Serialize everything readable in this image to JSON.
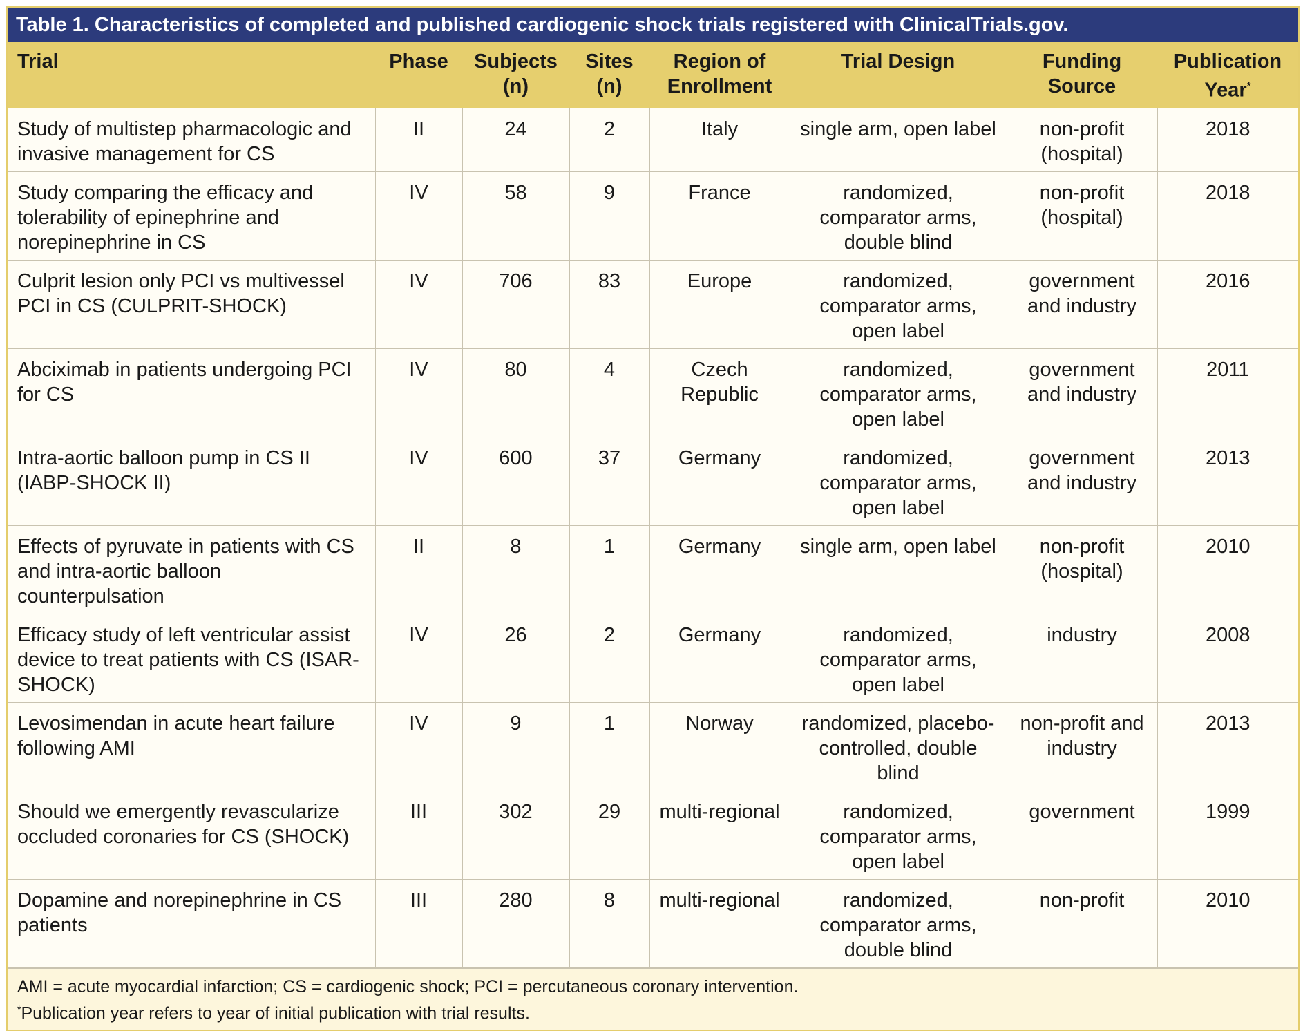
{
  "title": "Table 1. Characteristics of completed and published cardiogenic shock trials registered with ClinicalTrials.gov.",
  "table": {
    "header": [
      "Trial",
      "Phase",
      "Subjects (n)",
      "Sites (n)",
      "Region of Enrollment",
      "Trial Design",
      "Funding Source",
      "Publication Year"
    ],
    "header_note": "*",
    "rows": [
      [
        "Study of multistep pharmacologic and invasive management for CS",
        "II",
        "24",
        "2",
        "Italy",
        "single arm, open label",
        "non-profit (hospital)",
        "2018"
      ],
      [
        "Study comparing the efficacy and tolerability of epinephrine and norepinephrine in CS",
        "IV",
        "58",
        "9",
        "France",
        "randomized, comparator arms, double blind",
        "non-profit (hospital)",
        "2018"
      ],
      [
        "Culprit lesion only PCI vs multivessel PCI in CS (CULPRIT-SHOCK)",
        "IV",
        "706",
        "83",
        "Europe",
        "randomized, comparator arms, open label",
        "government and industry",
        "2016"
      ],
      [
        "Abciximab in patients undergoing PCI for CS",
        "IV",
        "80",
        "4",
        "Czech Republic",
        "randomized, comparator arms, open label",
        "government and industry",
        "2011"
      ],
      [
        "Intra-aortic balloon pump in CS II (IABP-SHOCK II)",
        "IV",
        "600",
        "37",
        "Germany",
        "randomized, comparator arms, open label",
        "government and industry",
        "2013"
      ],
      [
        "Effects of pyruvate in patients with CS and intra-aortic balloon counterpulsation",
        "II",
        "8",
        "1",
        "Germany",
        "single arm, open label",
        "non-profit (hospital)",
        "2010"
      ],
      [
        "Efficacy study of left ventricular assist device to treat patients with CS (ISAR-SHOCK)",
        "IV",
        "26",
        "2",
        "Germany",
        "randomized, comparator arms, open label",
        "industry",
        "2008"
      ],
      [
        "Levosimendan in acute heart failure following AMI",
        "IV",
        "9",
        "1",
        "Norway",
        "randomized, placebo-controlled, double blind",
        "non-profit and industry",
        "2013"
      ],
      [
        "Should we emergently revascularize occluded coronaries for CS (SHOCK)",
        "III",
        "302",
        "29",
        "multi-regional",
        "randomized, comparator arms, open label",
        "government",
        "1999"
      ],
      [
        "Dopamine and norepinephrine in CS patients",
        "III",
        "280",
        "8",
        "multi-regional",
        "randomized, comparator arms, double blind",
        "non-profit",
        "2010"
      ]
    ]
  },
  "footnotes": {
    "abbreviations": "AMI = acute myocardial infarction; CS = cardiogenic shock; PCI = percutaneous coronary intervention.",
    "marker": "*",
    "text": "Publication year refers to year of initial publication with trial results."
  }
}
